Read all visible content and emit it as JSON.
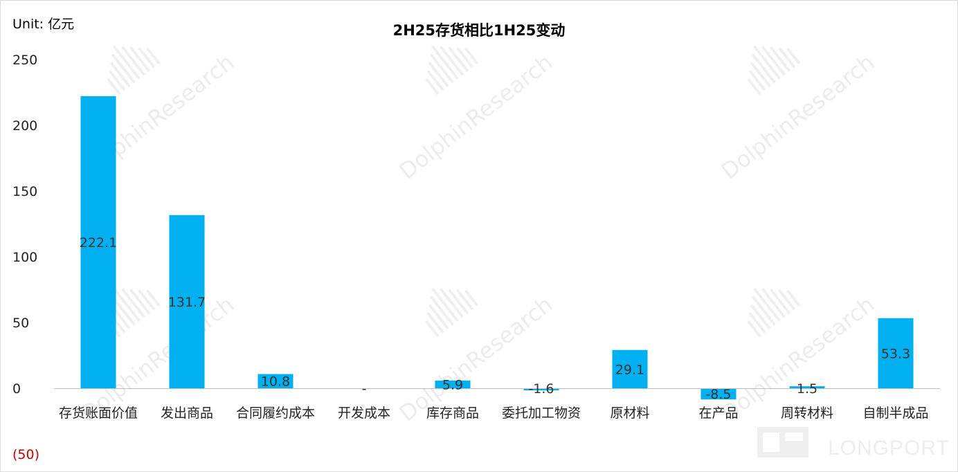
{
  "chart_data": {
    "type": "bar",
    "title": "2H25存货相比1H25变动",
    "unit_label": "Unit: 亿元",
    "categories": [
      "存货账面价值",
      "发出商品",
      "合同履约成本",
      "开发成本",
      "库存商品",
      "委托加工物资",
      "原材料",
      "在产品",
      "周转材料",
      "自制半成品"
    ],
    "values": [
      222.1,
      131.7,
      10.8,
      0,
      5.9,
      -1.6,
      29.1,
      -8.5,
      1.5,
      53.3
    ],
    "data_labels": [
      "222.1",
      "131.7",
      "10.8",
      "-",
      "5.9",
      "-1.6",
      "29.1",
      "-8.5",
      "1.5",
      "53.3"
    ],
    "ylim": [
      -50,
      250
    ],
    "yticks": [
      250,
      200,
      150,
      100,
      50,
      0,
      -50
    ],
    "ytick_labels": [
      "250",
      "200",
      "150",
      "100",
      "50",
      "0",
      "(50)"
    ],
    "bar_color": "#00b0f0",
    "negative_tick_color": "#c00000",
    "grid": false,
    "legend": "none"
  },
  "watermark": {
    "text": "DolphinResearch",
    "brand": "LONGPORT"
  }
}
